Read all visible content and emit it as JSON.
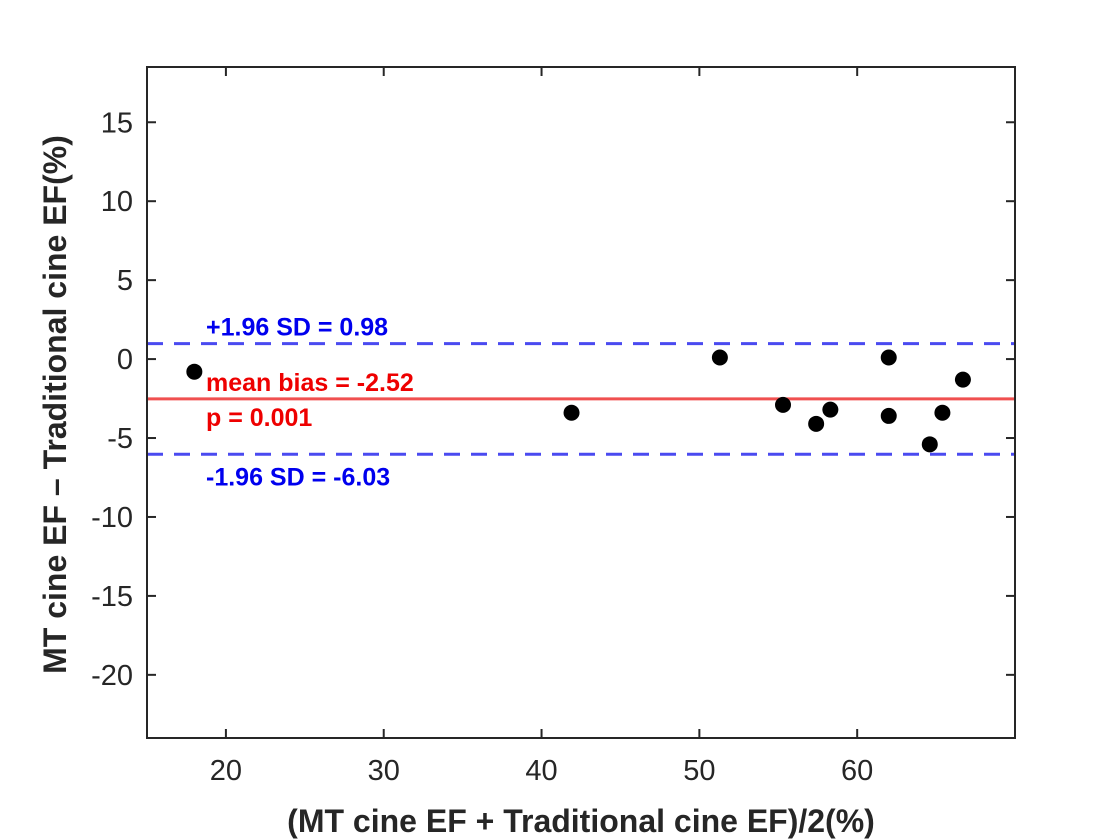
{
  "chart_data": {
    "type": "scatter",
    "title": "",
    "xlabel": "(MT cine EF + Traditional cine EF)/2(%)",
    "ylabel": "MT cine EF – Traditional cine EF(%)",
    "xlim": [
      15,
      70
    ],
    "ylim": [
      -24,
      18.5
    ],
    "xticks": [
      20,
      30,
      40,
      50,
      60
    ],
    "yticks": [
      15,
      10,
      5,
      0,
      -5,
      -10,
      -15,
      -20
    ],
    "grid": false,
    "points": [
      {
        "x": 18.0,
        "y": -0.8
      },
      {
        "x": 41.9,
        "y": -3.4
      },
      {
        "x": 51.3,
        "y": 0.1
      },
      {
        "x": 55.3,
        "y": -2.9
      },
      {
        "x": 57.4,
        "y": -4.1
      },
      {
        "x": 58.3,
        "y": -3.2
      },
      {
        "x": 62.0,
        "y": 0.1
      },
      {
        "x": 62.0,
        "y": -3.6
      },
      {
        "x": 64.6,
        "y": -5.4
      },
      {
        "x": 65.4,
        "y": -3.4
      },
      {
        "x": 66.7,
        "y": -1.3
      }
    ],
    "point_color": "#000000",
    "reference_lines": [
      {
        "name": "upper_loa",
        "y": 0.98,
        "style": "dashed",
        "color": "#4a4af0",
        "label": "+1.96 SD = 0.98",
        "label_color": "#0000ee"
      },
      {
        "name": "mean_bias",
        "y": -2.52,
        "style": "solid",
        "color": "#f05050",
        "label": "mean bias = -2.52",
        "label2": "p = 0.001",
        "label_color": "#ee0000"
      },
      {
        "name": "lower_loa",
        "y": -6.03,
        "style": "dashed",
        "color": "#4a4af0",
        "label": "-1.96 SD = -6.03",
        "label_color": "#0000ee"
      }
    ]
  }
}
